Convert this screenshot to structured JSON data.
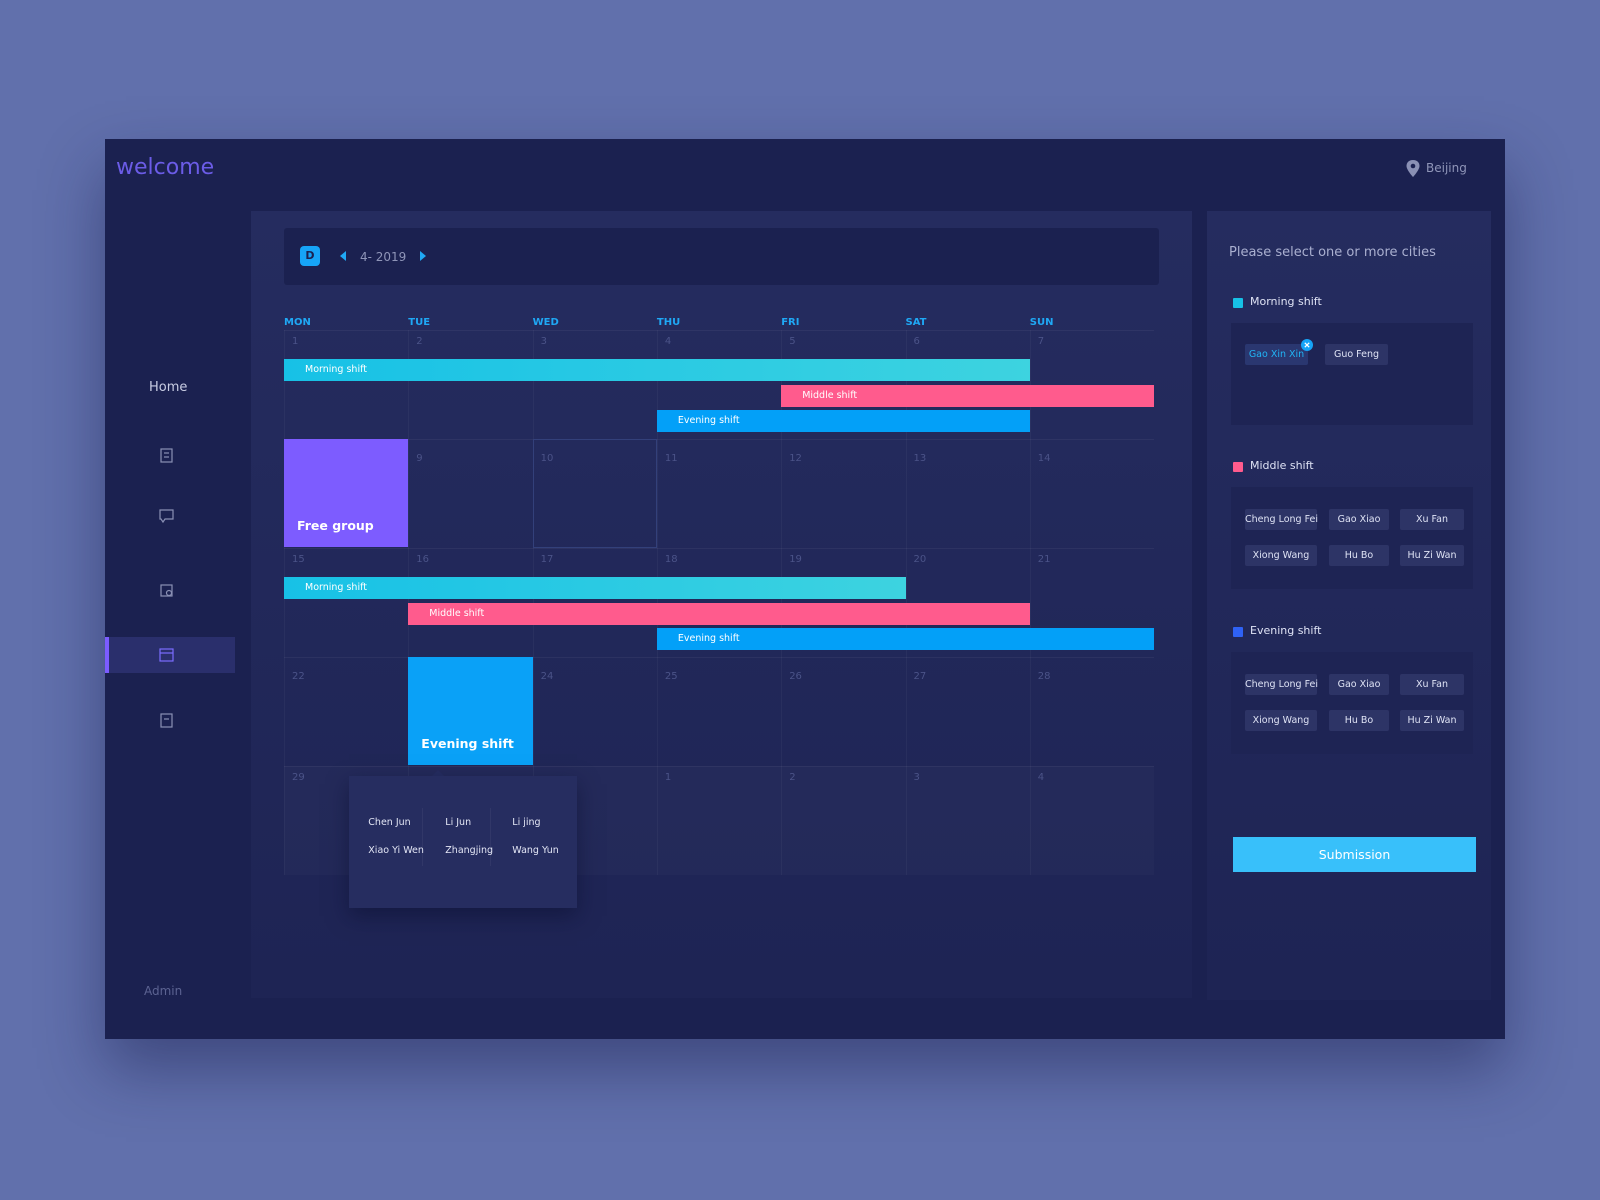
{
  "header": {
    "title": "welcome",
    "location": "Beijing"
  },
  "sidebar": {
    "home": "Home",
    "user": "Admin"
  },
  "calendar": {
    "view_icon": "D",
    "month": "4- 2019",
    "weekdays": [
      "MON",
      "TUE",
      "WED",
      "THU",
      "FRI",
      "SAT",
      "SUN"
    ],
    "weeks": [
      [
        1,
        2,
        3,
        4,
        5,
        6,
        7
      ],
      [
        null,
        9,
        10,
        11,
        12,
        13,
        14
      ],
      [
        15,
        16,
        17,
        18,
        19,
        20,
        21
      ],
      [
        22,
        null,
        24,
        25,
        26,
        27,
        28
      ],
      [
        29,
        null,
        null,
        1,
        2,
        3,
        4
      ]
    ],
    "bars": [
      {
        "label": "Morning shift",
        "from": 1,
        "to": 6,
        "color": "#17c1e6"
      },
      {
        "label": "Middle shift",
        "from": 5,
        "to": 7,
        "color": "#ff5b8d"
      },
      {
        "label": "Evening shift",
        "from": 4,
        "to": 6,
        "color": "#03a0f8"
      },
      {
        "label": "Morning shift",
        "from": 15,
        "to": 19,
        "color": "#17c1e6"
      },
      {
        "label": "Middle shift",
        "from": 16,
        "to": 20,
        "color": "#ff5b8d"
      },
      {
        "label": "Evening shift",
        "from": 18,
        "to": 21,
        "color": "#03a0f8"
      }
    ],
    "blocks": [
      {
        "label": "Free group",
        "date": 8,
        "color": "#7d5cff"
      },
      {
        "label": "Evening shift",
        "date": 23,
        "color": "#0aa1f7",
        "members": [
          "Chen Jun",
          "Li Jun",
          "Li jing",
          "Xiao Yi Wen",
          "Zhangjing",
          "Wang Yun"
        ]
      }
    ]
  },
  "panel": {
    "title": "Please select one or more cities",
    "groups": [
      {
        "name": "Morning shift",
        "color": "#17c1e6",
        "members": [
          "Gao Xin Xin",
          "Guo Feng"
        ],
        "selected": 0
      },
      {
        "name": "Middle shift",
        "color": "#ff5b8d",
        "members": [
          "Cheng Long Fei",
          "Gao Xiao",
          "Xu Fan",
          "Xiong Wang",
          "Hu Bo",
          "Hu Zi Wan"
        ]
      },
      {
        "name": "Evening shift",
        "color": "#2f62f5",
        "members": [
          "Cheng Long Fei",
          "Gao Xiao",
          "Xu Fan",
          "Xiong Wang",
          "Hu Bo",
          "Hu Zi Wan"
        ]
      }
    ],
    "submit": "Submission"
  }
}
